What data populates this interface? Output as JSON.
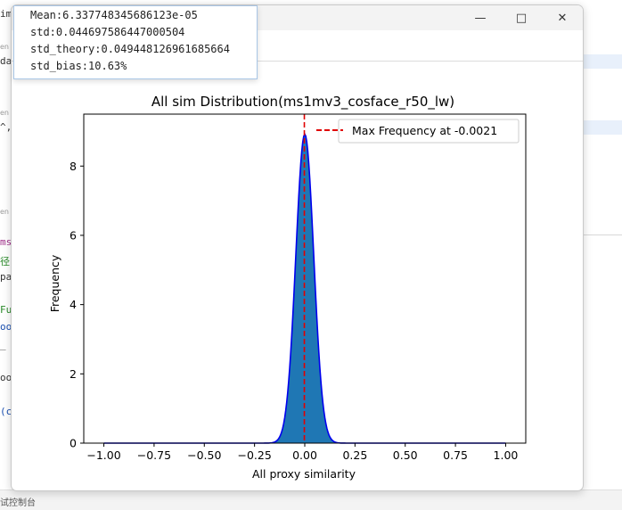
{
  "background_ide": {
    "code_fragments": [
      "im",
      "da",
      "^,",
      "ms",
      "径",
      "pa",
      "Fu",
      "oo",
      "_",
      "oo",
      "(c"
    ],
    "gutter_notes": [
      "en",
      "en",
      "en"
    ],
    "status_text": "试控制台"
  },
  "stats_box": {
    "mean": "Mean:6.337748345686123e-05",
    "std": "std:0.044697586447000504",
    "std_theory": "std_theory:0.049448126961685664",
    "std_bias": "std_bias:10.63%"
  },
  "window_controls": {
    "minimize": "—",
    "maximize": "□",
    "close": "✕"
  },
  "chart_data": {
    "type": "area",
    "title": "All sim Distribution(ms1mv3_cosface_r50_lw)",
    "xlabel": "All proxy similarity",
    "ylabel": "Frequency",
    "xlim": [
      -1.1,
      1.1
    ],
    "ylim": [
      0,
      9.5
    ],
    "x_ticks": [
      -1.0,
      -0.75,
      -0.5,
      -0.25,
      0.0,
      0.25,
      0.5,
      0.75,
      1.0
    ],
    "x_tick_labels": [
      "−1.00",
      "−0.75",
      "−0.50",
      "−0.25",
      "0.00",
      "0.25",
      "0.50",
      "0.75",
      "1.00"
    ],
    "y_ticks": [
      0,
      2,
      4,
      6,
      8
    ],
    "y_tick_labels": [
      "0",
      "2",
      "4",
      "6",
      "8"
    ],
    "distribution": {
      "mean": 6.34e-05,
      "std": 0.0447,
      "peak": 8.92,
      "x_range": [
        -1.0,
        1.0
      ]
    },
    "vline": {
      "x": -0.0021,
      "label": "Max Frequency at -0.0021",
      "color": "#e00000"
    },
    "legend_position": "top-right",
    "fill_color": "#1f77b4",
    "line_color": "#0000ee",
    "grid": false
  }
}
